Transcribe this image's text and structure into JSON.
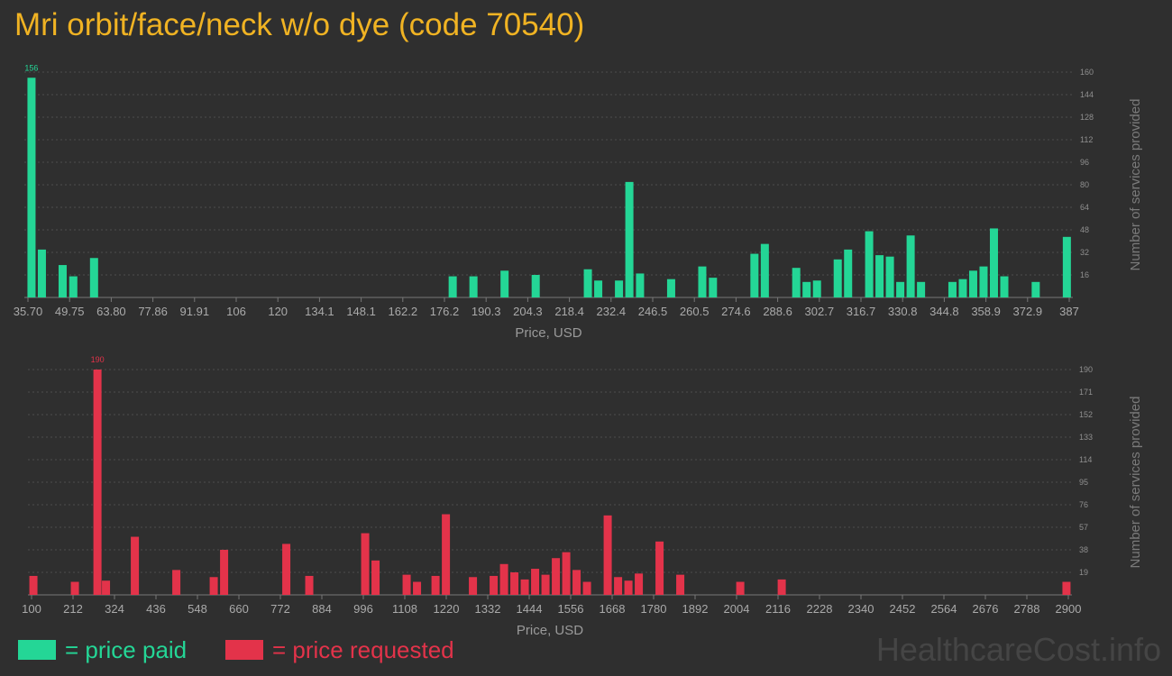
{
  "title": "Mri orbit/face/neck w/o dye (code 70540)",
  "colors": {
    "background": "#2f2f2f",
    "title": "#f0b323",
    "paid": "#24d696",
    "requested": "#e3334a",
    "grid": "#4d4d4d",
    "watermark": "#454545"
  },
  "legend": {
    "paid_label": "= price paid",
    "requested_label": "= price requested"
  },
  "watermark": "HealthcareCost.info",
  "chart_data": [
    {
      "type": "bar",
      "name": "price paid",
      "xlabel": "Price, USD",
      "ylabel": "Number of services provided",
      "xlim": [
        35.7,
        387
      ],
      "ylim": [
        0,
        160
      ],
      "x_ticks": [
        "35.70",
        "49.75",
        "63.80",
        "77.86",
        "91.91",
        "106",
        "120",
        "134.1",
        "148.1",
        "162.2",
        "176.2",
        "190.3",
        "204.3",
        "218.4",
        "232.4",
        "246.5",
        "260.5",
        "274.6",
        "288.6",
        "302.7",
        "316.7",
        "330.8",
        "344.8",
        "358.9",
        "372.9",
        "387"
      ],
      "y_ticks": [
        16,
        32,
        48,
        64,
        80,
        96,
        112,
        128,
        144,
        160
      ],
      "peak_label": "156",
      "bins": [
        {
          "x": 36.9,
          "y": 156
        },
        {
          "x": 40.4,
          "y": 34
        },
        {
          "x": 47.4,
          "y": 23
        },
        {
          "x": 51.0,
          "y": 15
        },
        {
          "x": 58.0,
          "y": 28
        },
        {
          "x": 179.0,
          "y": 15
        },
        {
          "x": 186.0,
          "y": 15
        },
        {
          "x": 196.5,
          "y": 19
        },
        {
          "x": 207.0,
          "y": 16
        },
        {
          "x": 224.6,
          "y": 20
        },
        {
          "x": 228.1,
          "y": 12
        },
        {
          "x": 235.1,
          "y": 12
        },
        {
          "x": 238.6,
          "y": 82
        },
        {
          "x": 242.2,
          "y": 17
        },
        {
          "x": 252.7,
          "y": 13
        },
        {
          "x": 263.2,
          "y": 22
        },
        {
          "x": 266.8,
          "y": 14
        },
        {
          "x": 280.8,
          "y": 31
        },
        {
          "x": 284.3,
          "y": 38
        },
        {
          "x": 294.9,
          "y": 21
        },
        {
          "x": 298.4,
          "y": 11
        },
        {
          "x": 301.9,
          "y": 12
        },
        {
          "x": 308.9,
          "y": 27
        },
        {
          "x": 312.4,
          "y": 34
        },
        {
          "x": 319.5,
          "y": 47
        },
        {
          "x": 323.0,
          "y": 30
        },
        {
          "x": 326.5,
          "y": 29
        },
        {
          "x": 330.0,
          "y": 11
        },
        {
          "x": 333.5,
          "y": 44
        },
        {
          "x": 337.0,
          "y": 11
        },
        {
          "x": 347.6,
          "y": 11
        },
        {
          "x": 351.1,
          "y": 13
        },
        {
          "x": 354.6,
          "y": 19
        },
        {
          "x": 358.1,
          "y": 22
        },
        {
          "x": 361.6,
          "y": 49
        },
        {
          "x": 365.1,
          "y": 15
        },
        {
          "x": 375.7,
          "y": 11
        },
        {
          "x": 386.2,
          "y": 43
        }
      ]
    },
    {
      "type": "bar",
      "name": "price requested",
      "xlabel": "Price, USD",
      "ylabel": "Number of services provided",
      "xlim": [
        100,
        2900
      ],
      "ylim": [
        0,
        190
      ],
      "x_ticks": [
        "100",
        "212",
        "324",
        "436",
        "548",
        "660",
        "772",
        "884",
        "996",
        "1108",
        "1220",
        "1332",
        "1444",
        "1556",
        "1668",
        "1780",
        "1892",
        "2004",
        "2116",
        "2228",
        "2340",
        "2452",
        "2564",
        "2676",
        "2788",
        "2900"
      ],
      "y_ticks": [
        19,
        38,
        57,
        76,
        95,
        114,
        133,
        152,
        171,
        190
      ],
      "peak_label": "190",
      "bins": [
        {
          "x": 105,
          "y": 16
        },
        {
          "x": 217,
          "y": 11
        },
        {
          "x": 278,
          "y": 190
        },
        {
          "x": 301,
          "y": 12
        },
        {
          "x": 379,
          "y": 49
        },
        {
          "x": 491,
          "y": 21
        },
        {
          "x": 592,
          "y": 15
        },
        {
          "x": 620,
          "y": 38
        },
        {
          "x": 788,
          "y": 43
        },
        {
          "x": 850,
          "y": 16
        },
        {
          "x": 1001,
          "y": 52
        },
        {
          "x": 1029,
          "y": 29
        },
        {
          "x": 1113,
          "y": 17
        },
        {
          "x": 1141,
          "y": 11
        },
        {
          "x": 1191,
          "y": 16
        },
        {
          "x": 1219,
          "y": 68
        },
        {
          "x": 1292,
          "y": 15
        },
        {
          "x": 1348,
          "y": 16
        },
        {
          "x": 1376,
          "y": 26
        },
        {
          "x": 1404,
          "y": 19
        },
        {
          "x": 1432,
          "y": 13
        },
        {
          "x": 1460,
          "y": 22
        },
        {
          "x": 1488,
          "y": 17
        },
        {
          "x": 1516,
          "y": 31
        },
        {
          "x": 1544,
          "y": 36
        },
        {
          "x": 1572,
          "y": 21
        },
        {
          "x": 1600,
          "y": 11
        },
        {
          "x": 1656,
          "y": 67
        },
        {
          "x": 1684,
          "y": 15
        },
        {
          "x": 1712,
          "y": 12
        },
        {
          "x": 1740,
          "y": 18
        },
        {
          "x": 1796,
          "y": 45
        },
        {
          "x": 1852,
          "y": 17
        },
        {
          "x": 2014,
          "y": 11
        },
        {
          "x": 2126,
          "y": 13
        },
        {
          "x": 2895,
          "y": 11
        }
      ]
    }
  ]
}
